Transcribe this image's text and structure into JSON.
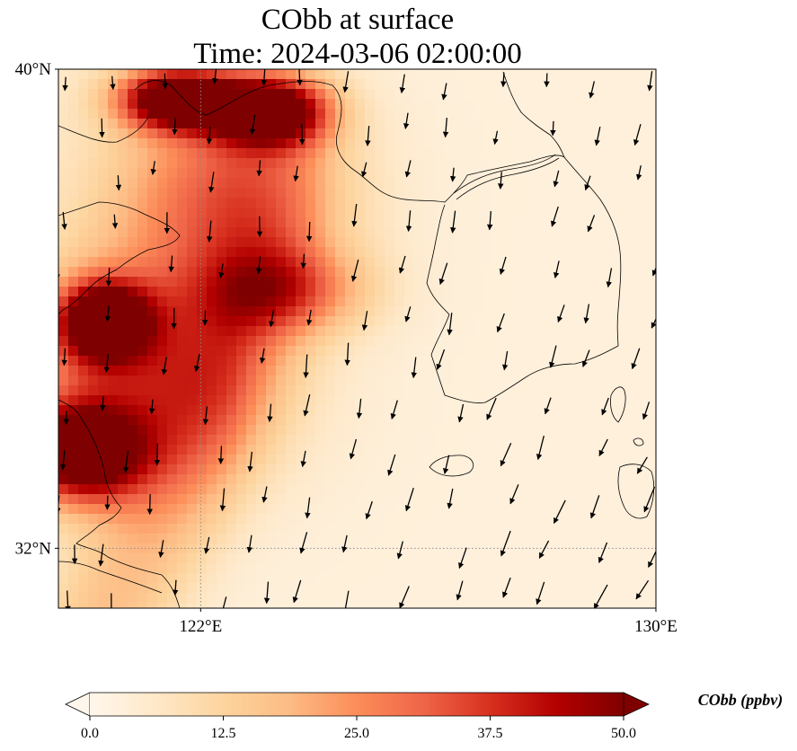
{
  "chart_data": {
    "type": "heatmap",
    "title_line1": "CObb at surface",
    "title_line2": "Time: 2024-03-06 02:00:00",
    "xlim": [
      119.5,
      130.0
    ],
    "ylim": [
      31.0,
      40.0
    ],
    "x_ticks": [
      122,
      130
    ],
    "x_tick_labels": [
      "122°E",
      "130°E"
    ],
    "y_ticks": [
      32,
      40
    ],
    "y_tick_labels": [
      "32°N",
      "40°N"
    ],
    "gridlines": "dotted at 122°E and 32°N",
    "colormap": "OrRd",
    "colorbar": {
      "min": 0.0,
      "max": 50.0,
      "ticks": [
        0.0,
        12.5,
        25.0,
        37.5,
        50.0
      ],
      "tick_labels": [
        "0.0",
        "12.5",
        "25.0",
        "37.5",
        "50.0"
      ],
      "extend": "both",
      "label": "CObb (ppbv)",
      "orientation": "horizontal"
    },
    "plumes": [
      {
        "lon": 121.6,
        "lat": 39.5,
        "peak": 58,
        "sx": 0.7,
        "sy": 0.35
      },
      {
        "lon": 123.2,
        "lat": 39.3,
        "peak": 55,
        "sx": 0.7,
        "sy": 0.4
      },
      {
        "lon": 120.3,
        "lat": 35.8,
        "peak": 52,
        "sx": 0.55,
        "sy": 0.45
      },
      {
        "lon": 119.9,
        "lat": 33.6,
        "peak": 56,
        "sx": 0.75,
        "sy": 0.55
      },
      {
        "lon": 121.0,
        "lat": 35.0,
        "peak": 30,
        "sx": 1.6,
        "sy": 1.3
      },
      {
        "lon": 123.5,
        "lat": 36.3,
        "peak": 22,
        "sx": 1.0,
        "sy": 0.5
      },
      {
        "lon": 122.5,
        "lat": 37.9,
        "peak": 28,
        "sx": 1.4,
        "sy": 1.2
      }
    ],
    "wind_vectors_note": "southward winds, stronger in southeast"
  },
  "colors": {
    "cmap_low": "#fff7ec",
    "cmap_mid1": "#fdd49e",
    "cmap_mid2": "#fc8d59",
    "cmap_mid3": "#d7301f",
    "cmap_high": "#7f0000",
    "coast": "#000000",
    "grid": "#8c8c8c"
  }
}
